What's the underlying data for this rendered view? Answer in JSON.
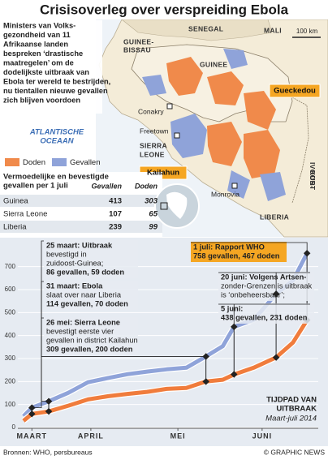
{
  "header": {
    "title": "Crisisoverleg over verspreiding Ebola"
  },
  "intro": {
    "lines": [
      "Ministers van Volks-",
      "gezondheid van 11",
      "Afrikaanse landen",
      "bespreken ‘drastische",
      "maatregelen’ om de",
      "dodelijkste uitbraak van",
      "Ebola ter wereld te bestrijden,",
      "nu tientallen nieuwe gevallen",
      "zich blijven voordoen"
    ]
  },
  "map": {
    "labels": [
      "SENEGAL",
      "MALI",
      "GUINEE-",
      "BISSAU",
      "GUINEE",
      "Conakry",
      "Freetown",
      "SIERRA",
      "LEONE",
      "Monrovia",
      "LIBERIA",
      "IVOOR-",
      "KUST"
    ],
    "ocean": [
      "ATLANTISCHE",
      "OCEAAN"
    ],
    "scale": "100 km",
    "highlights": [
      "Gueckedou",
      "Kailahun"
    ],
    "legend": [
      {
        "name": "Doden",
        "color": "#f08a4b"
      },
      {
        "name": "Gevallen",
        "color": "#8fa3d9"
      }
    ]
  },
  "table": {
    "title": [
      "Vermoedelijke en bevestigde",
      "gevallen per 1 juli"
    ],
    "columns": [
      "Gevallen",
      "Doden"
    ],
    "rows": [
      [
        "Guinea",
        "413",
        "303"
      ],
      [
        "Sierra Leone",
        "107",
        "65"
      ],
      [
        "Liberia",
        "239",
        "99"
      ]
    ]
  },
  "chart_data": {
    "type": "line",
    "title": [
      "TIJDPAD VAN",
      "UITBRAAK"
    ],
    "subtitle": "Maart-juli 2014",
    "x": [
      "2014-03-22",
      "2014-03-25",
      "2014-03-31",
      "2014-04-07",
      "2014-04-14",
      "2014-04-21",
      "2014-04-28",
      "2014-05-05",
      "2014-05-12",
      "2014-05-19",
      "2014-05-26",
      "2014-06-01",
      "2014-06-05",
      "2014-06-12",
      "2014-06-20",
      "2014-06-26",
      "2014-07-01"
    ],
    "series": [
      {
        "name": "Gevallen",
        "color": "#8fa3d9",
        "values": [
          49,
          86,
          114,
          151,
          197,
          215,
          232,
          243,
          253,
          260,
          309,
          354,
          438,
          469,
          581,
          640,
          758
        ]
      },
      {
        "name": "Doden",
        "color": "#f07c3c",
        "values": [
          29,
          59,
          70,
          95,
          122,
          136,
          146,
          155,
          168,
          172,
          200,
          208,
          231,
          260,
          305,
          370,
          467
        ]
      }
    ],
    "xlim": [
      "2014-03-20",
      "2014-07-05"
    ],
    "xticks": [
      {
        "value": "2014-03-25",
        "label": "MAART"
      },
      {
        "value": "2014-04-15",
        "label": "APRIL"
      },
      {
        "value": "2014-05-16",
        "label": "MEI"
      },
      {
        "value": "2014-06-15",
        "label": "JUNI"
      }
    ],
    "ylim": [
      0,
      780
    ],
    "yticks": [
      0,
      100,
      200,
      300,
      400,
      500,
      600,
      700
    ],
    "grid": true,
    "annotations": [
      {
        "lines": [
          "25 maart: Uitbraak",
          "bevestigd in",
          "zuidoost-Guinea;"
        ],
        "stats": "86 gevallen, 59 doden"
      },
      {
        "lines": [
          "31 maart: Ebola",
          "slaat over naar Liberia"
        ],
        "stats": "114 gevallen, 70 doden"
      },
      {
        "lines": [
          "26 mei: Sierra Leone",
          "bevestigt eerste vier",
          "gevallen in district Kailahun"
        ],
        "stats": "309 gevallen, 200 doden"
      },
      {
        "lines": [
          "1 juli: Rapport WHO"
        ],
        "stats": "758 gevallen, 467 doden"
      },
      {
        "lines": [
          "20 juni: Volgens Artsen-",
          "zonder-Grenzen is uitbraak",
          "is ‘onbeheersbaar’;"
        ],
        "stats": ""
      },
      {
        "lines": [
          "5 juni:"
        ],
        "stats": "438 gevallen, 231 doden"
      }
    ]
  },
  "footer": {
    "sources": "Bronnen: WHO, persbureaus",
    "credit": "© GRAPHIC NEWS"
  }
}
